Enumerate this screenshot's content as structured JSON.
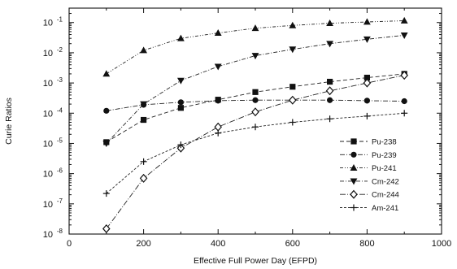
{
  "chart_data": {
    "type": "line",
    "title": "",
    "xlabel": "Effective Full Power Day (EFPD)",
    "ylabel": "Curie Ratios",
    "x_scale": "linear",
    "y_scale": "log",
    "xlim": [
      0,
      1000
    ],
    "ylim": [
      1e-08,
      0.3
    ],
    "x_ticks": [
      0,
      200,
      400,
      600,
      800,
      1000
    ],
    "x_tick_labels": [
      "0",
      "200",
      "400",
      "600",
      "800",
      "1000"
    ],
    "y_ticks": [
      1e-08,
      1e-07,
      1e-06,
      1e-05,
      0.0001,
      0.001,
      0.01,
      0.1
    ],
    "y_tick_labels": [
      {
        "base": "10",
        "exp": "-8"
      },
      {
        "base": "10",
        "exp": "-7"
      },
      {
        "base": "10",
        "exp": "-6"
      },
      {
        "base": "10",
        "exp": "-5"
      },
      {
        "base": "10",
        "exp": "-4"
      },
      {
        "base": "10",
        "exp": "-3"
      },
      {
        "base": "10",
        "exp": "-2"
      },
      {
        "base": "10",
        "exp": "-1"
      }
    ],
    "grid": false,
    "legend_position": "lower-right",
    "x": [
      100,
      200,
      300,
      400,
      500,
      600,
      700,
      800,
      900
    ],
    "series": [
      {
        "name": "Pu-238",
        "marker": "square",
        "dash": "5,3",
        "values": [
          1.1e-05,
          6e-05,
          0.00015,
          0.00028,
          0.0005,
          0.00075,
          0.0011,
          0.0015,
          0.002
        ]
      },
      {
        "name": "Pu-239",
        "marker": "circle",
        "dash": "6,2,1,2",
        "values": [
          0.00012,
          0.00019,
          0.00023,
          0.00026,
          0.00027,
          0.00027,
          0.00027,
          0.00026,
          0.00025
        ]
      },
      {
        "name": "Pu-241",
        "marker": "triangle-up",
        "dash": "4,2,1,2,1,2",
        "values": [
          0.002,
          0.012,
          0.03,
          0.045,
          0.065,
          0.08,
          0.095,
          0.105,
          0.115
        ]
      },
      {
        "name": "Cm-242",
        "marker": "triangle-down",
        "dash": "5,2,1,2",
        "values": [
          1e-05,
          0.0002,
          0.0012,
          0.0035,
          0.008,
          0.013,
          0.02,
          0.028,
          0.038
        ]
      },
      {
        "name": "Cm-244",
        "marker": "diamond-open",
        "dash": "7,2,1,2",
        "values": [
          1.5e-08,
          7e-07,
          7e-06,
          3.5e-05,
          0.00011,
          0.00027,
          0.00055,
          0.001,
          0.0018
        ]
      },
      {
        "name": "Am-241",
        "marker": "plus",
        "dash": "3,2",
        "values": [
          2.2e-07,
          2.5e-06,
          9e-06,
          2.2e-05,
          3.5e-05,
          5e-05,
          6.5e-05,
          8e-05,
          0.0001
        ]
      }
    ]
  }
}
